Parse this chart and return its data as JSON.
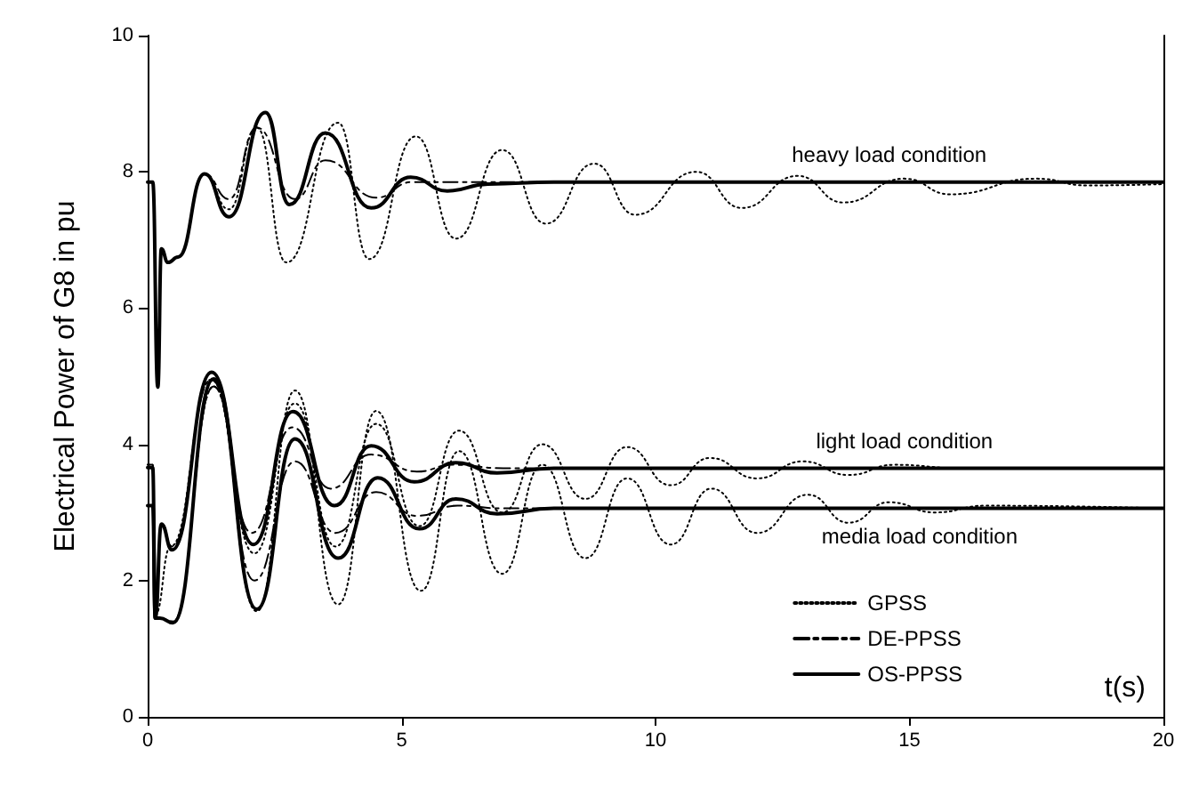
{
  "chart_data": {
    "type": "line",
    "xlabel": "t(s)",
    "ylabel": "Electrical Power of G8 in pu",
    "xlim": [
      0,
      20
    ],
    "xticks": [
      0,
      5,
      10,
      15,
      20
    ],
    "ylim": [
      0,
      10
    ],
    "yticks": [
      0,
      2,
      4,
      6,
      8,
      10
    ],
    "grid": false,
    "legend": "bottom right",
    "marker": "none",
    "annotations": [
      "heavy load condition",
      "light load condition",
      "media load condition"
    ],
    "series": [
      {
        "name": "GPSS",
        "color": "#000000",
        "line_style": "dotted",
        "x": [
          0,
          0.1,
          0.2,
          0.27,
          0.4,
          0.6,
          1.12,
          1.6,
          2.15,
          2.73,
          3.75,
          4.36,
          5.28,
          6.07,
          6.98,
          7.84,
          8.79,
          9.6,
          10.8,
          11.7,
          12.8,
          13.7,
          14.9,
          15.8,
          17.5,
          18.5,
          20
        ],
        "values": [
          7.85,
          7.85,
          4.85,
          6.85,
          6.67,
          6.75,
          7.97,
          7.45,
          8.65,
          6.67,
          8.72,
          6.72,
          8.52,
          7.02,
          8.32,
          7.24,
          8.12,
          7.37,
          8.0,
          7.47,
          7.94,
          7.55,
          7.9,
          7.67,
          7.9,
          7.8,
          7.82
        ]
      },
      {
        "name": "DE-PPSS",
        "color": "#000000",
        "line_style": "dashed",
        "x": [
          0,
          0.1,
          0.2,
          0.27,
          0.4,
          0.6,
          1.12,
          1.6,
          2.15,
          2.9,
          3.5,
          4.5,
          5.2,
          6,
          20
        ],
        "values": [
          7.85,
          7.85,
          4.85,
          6.85,
          6.67,
          6.75,
          7.97,
          7.6,
          8.65,
          7.6,
          8.17,
          7.62,
          7.85,
          7.85,
          7.85
        ]
      },
      {
        "name": "OS-PPSS",
        "color": "#000000",
        "line_style": "solid",
        "x": [
          0,
          0.1,
          0.2,
          0.27,
          0.4,
          0.6,
          1.12,
          1.6,
          2.32,
          2.79,
          3.5,
          4.4,
          5.18,
          5.9,
          6.7,
          8,
          20
        ],
        "values": [
          7.85,
          7.85,
          4.84,
          6.87,
          6.67,
          6.75,
          7.97,
          7.34,
          8.87,
          7.52,
          8.57,
          7.47,
          7.92,
          7.72,
          7.82,
          7.85,
          7.85
        ]
      },
      {
        "color": "#000000",
        "line_style": "dotted",
        "x": [
          0,
          0.1,
          0.15,
          0.45,
          1.25,
          2.1,
          2.9,
          3.7,
          4.5,
          5.35,
          6.13,
          6.98,
          7.77,
          8.62,
          9.44,
          10.3,
          11.07,
          12,
          12.9,
          13.8,
          14.7,
          16,
          20
        ],
        "values": [
          3.7,
          3.7,
          1.5,
          2.5,
          4.95,
          2.4,
          4.6,
          2.5,
          4.3,
          2.8,
          4.2,
          3.0,
          4.0,
          3.2,
          3.96,
          3.4,
          3.8,
          3.5,
          3.75,
          3.55,
          3.7,
          3.65,
          3.65
        ]
      },
      {
        "color": "#000000",
        "line_style": "dashed",
        "x": [
          0,
          0.1,
          0.15,
          0.27,
          0.48,
          1.25,
          2.05,
          2.85,
          3.6,
          4.4,
          5.3,
          6,
          7,
          20
        ],
        "values": [
          3.7,
          3.7,
          1.45,
          2.83,
          2.5,
          4.95,
          2.7,
          4.25,
          3.35,
          3.85,
          3.6,
          3.7,
          3.65,
          3.65
        ]
      },
      {
        "color": "#000000",
        "line_style": "solid",
        "x": [
          0,
          0.1,
          0.15,
          0.27,
          0.48,
          1.26,
          2.08,
          2.86,
          3.68,
          4.4,
          5.25,
          6.07,
          6.88,
          8,
          20
        ],
        "values": [
          3.66,
          3.66,
          1.45,
          2.83,
          2.45,
          5.06,
          2.53,
          4.48,
          3.1,
          3.98,
          3.45,
          3.73,
          3.58,
          3.65,
          3.65
        ]
      },
      {
        "color": "#000000",
        "line_style": "dotted",
        "x": [
          0,
          0.1,
          0.15,
          0.5,
          1.3,
          2.15,
          2.9,
          3.75,
          4.5,
          5.38,
          6.13,
          6.98,
          7.77,
          8.62,
          9.44,
          10.3,
          11.1,
          12,
          13,
          13.8,
          14.6,
          15.5,
          16.5,
          20
        ],
        "values": [
          3.1,
          3.1,
          1.45,
          1.4,
          4.85,
          1.55,
          4.79,
          1.65,
          4.49,
          1.85,
          3.9,
          2.1,
          3.7,
          2.33,
          3.5,
          2.53,
          3.35,
          2.7,
          3.26,
          2.85,
          3.15,
          3.0,
          3.1,
          3.06
        ]
      },
      {
        "color": "#000000",
        "line_style": "dashed",
        "x": [
          0,
          0.1,
          0.15,
          0.24,
          0.5,
          1.3,
          2.1,
          2.9,
          3.7,
          4.5,
          5.3,
          6.1,
          7,
          20
        ],
        "values": [
          3.1,
          3.1,
          1.45,
          1.45,
          1.4,
          4.85,
          2.0,
          3.75,
          2.7,
          3.3,
          2.95,
          3.1,
          3.06,
          3.06
        ]
      },
      {
        "color": "#000000",
        "line_style": "solid",
        "x": [
          0,
          0.1,
          0.15,
          0.24,
          0.5,
          1.3,
          2.15,
          2.9,
          3.75,
          4.53,
          5.35,
          6.07,
          6.88,
          8,
          20
        ],
        "values": [
          3.1,
          3.1,
          1.45,
          1.45,
          1.38,
          4.96,
          1.58,
          4.08,
          2.33,
          3.51,
          2.76,
          3.2,
          2.98,
          3.06,
          3.06
        ]
      }
    ]
  }
}
